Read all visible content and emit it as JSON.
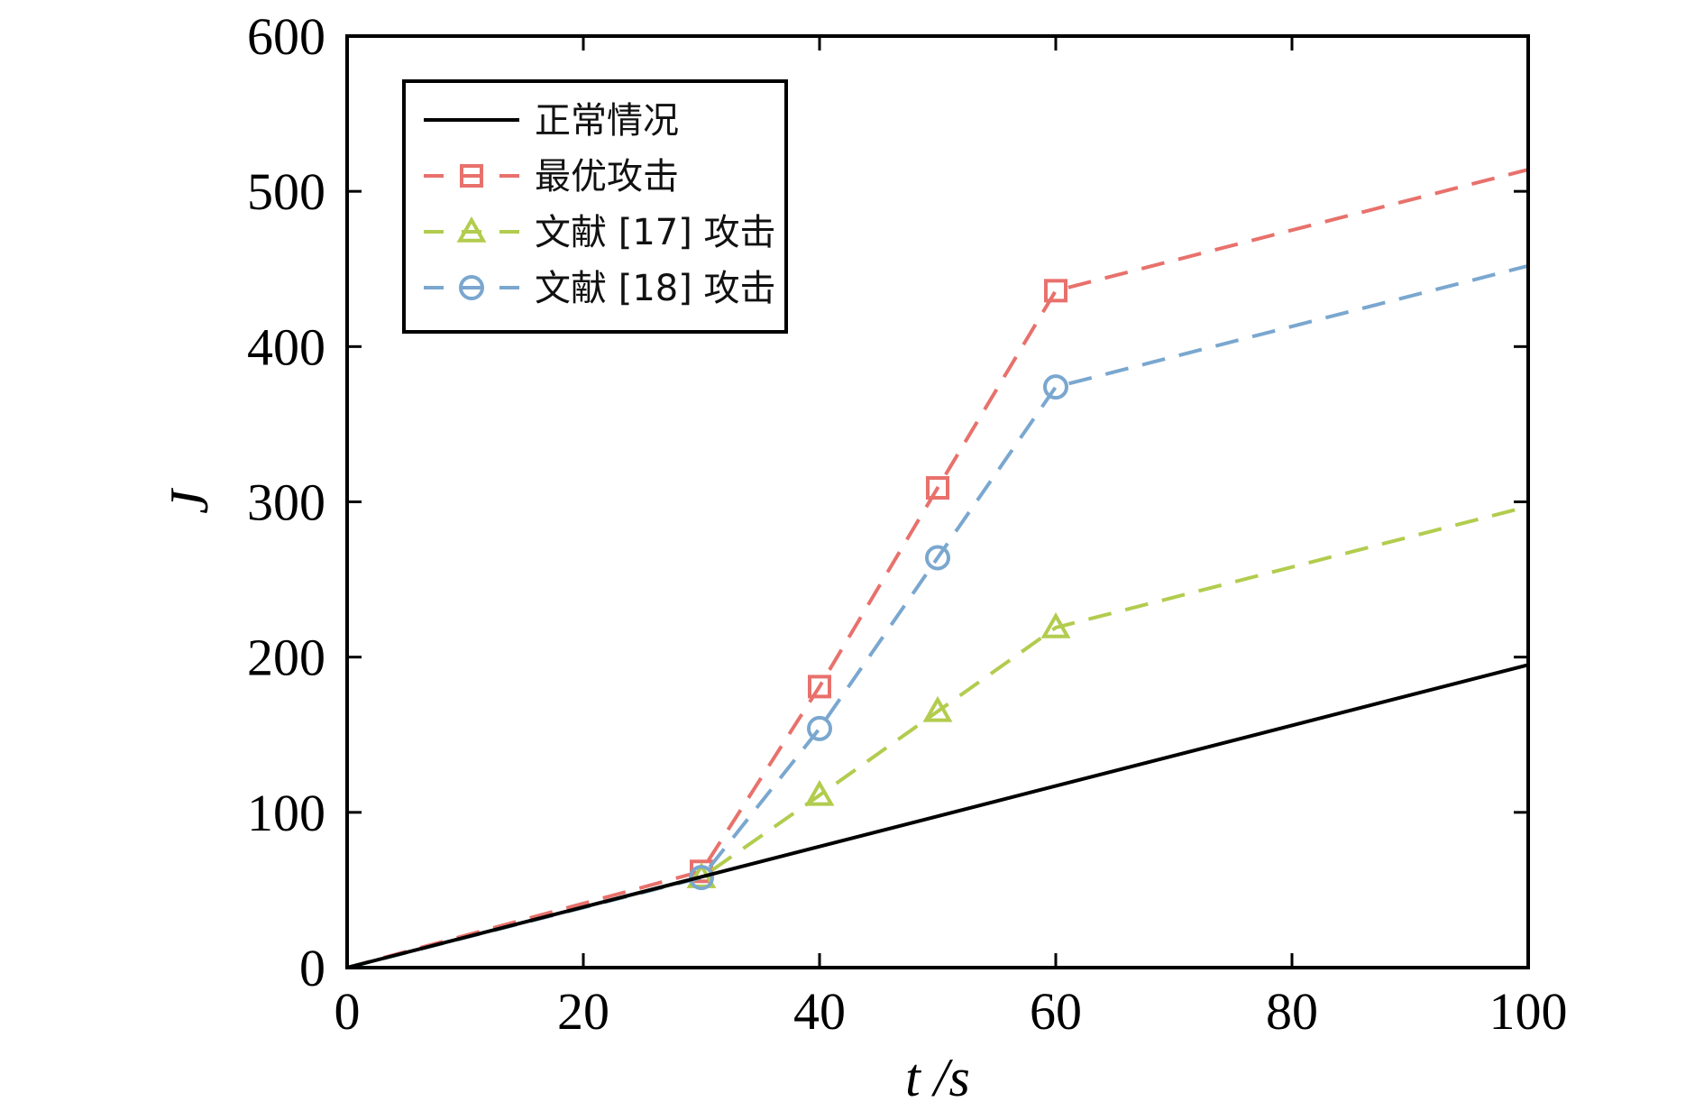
{
  "chart_data": {
    "type": "line",
    "xlabel": "t /s",
    "ylabel": "J",
    "xlim": [
      0,
      100
    ],
    "ylim": [
      0,
      600
    ],
    "xticks": [
      0,
      20,
      40,
      60,
      80,
      100
    ],
    "yticks": [
      0,
      100,
      200,
      300,
      400,
      500,
      600
    ],
    "legend_position": "top-left",
    "grid": false,
    "series": [
      {
        "name": "正常情况",
        "color": "#000000",
        "dash": "solid",
        "marker": "none",
        "x": [
          0,
          100
        ],
        "y": [
          0,
          195
        ]
      },
      {
        "name": "最优攻击",
        "color": "#e8716c",
        "dash": "dashed",
        "marker": "square",
        "x": [
          0,
          30,
          40,
          50,
          60,
          100
        ],
        "y": [
          0,
          62,
          181,
          309,
          436,
          514
        ],
        "marker_x": [
          30,
          40,
          50,
          60
        ]
      },
      {
        "name": "文献 [17] 攻击",
        "color": "#b2cc4e",
        "dash": "dashed",
        "marker": "triangle",
        "x": [
          0,
          30,
          40,
          50,
          60,
          100
        ],
        "y": [
          0,
          58,
          111,
          165,
          219,
          297
        ],
        "marker_x": [
          30,
          40,
          50,
          60
        ]
      },
      {
        "name": "文献 [18] 攻击",
        "color": "#7aa7cf",
        "dash": "dashed",
        "marker": "circle",
        "x": [
          0,
          30,
          40,
          50,
          60,
          100
        ],
        "y": [
          0,
          58,
          154,
          264,
          374,
          452
        ],
        "marker_x": [
          30,
          40,
          50,
          60
        ]
      }
    ]
  }
}
